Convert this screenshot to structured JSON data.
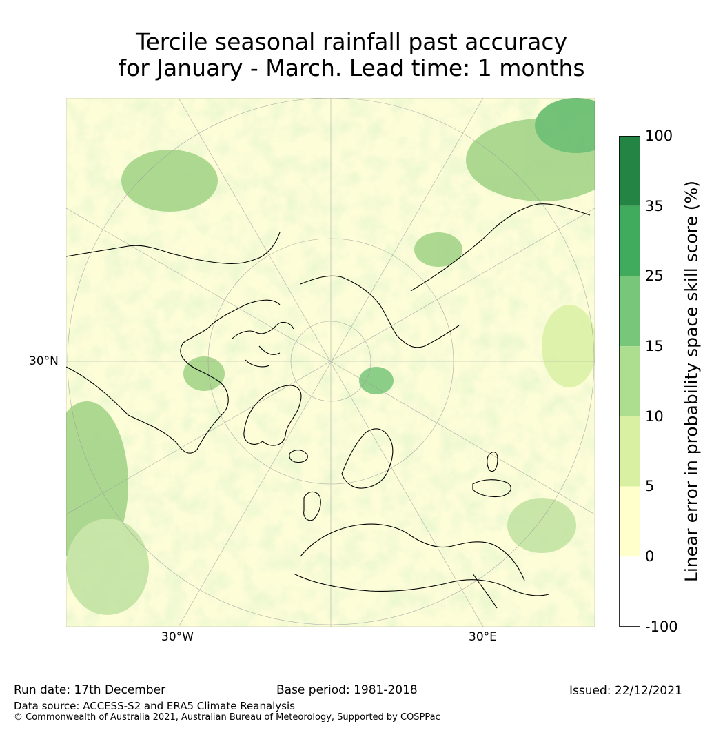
{
  "title": {
    "line1": "Tercile seasonal rainfall past accuracy",
    "line2": "for January - March. Lead time: 1 months"
  },
  "map": {
    "projection": "north polar stereographic",
    "lat_labels": [
      "30°N"
    ],
    "lon_labels": [
      "30°W",
      "30°E"
    ]
  },
  "colorbar": {
    "label": "Linear error in probability space skill score (%)",
    "ticks": [
      "100",
      "35",
      "25",
      "15",
      "10",
      "5",
      "0",
      "-100"
    ],
    "bins": [
      {
        "range": [
          -100,
          0
        ],
        "color": "#ffffff"
      },
      {
        "range": [
          0,
          5
        ],
        "color": "#ffffcc"
      },
      {
        "range": [
          5,
          10
        ],
        "color": "#d9f0a3"
      },
      {
        "range": [
          10,
          15
        ],
        "color": "#addd8e"
      },
      {
        "range": [
          15,
          25
        ],
        "color": "#78c679"
      },
      {
        "range": [
          25,
          35
        ],
        "color": "#41ab5d"
      },
      {
        "range": [
          35,
          100
        ],
        "color": "#238443"
      }
    ]
  },
  "footer": {
    "run_date": "Run date: 17th December",
    "base_period": "Base period: 1981-2018",
    "issued": "Issued: 22/12/2021",
    "source": "Data source: ACCESS-S2 and ERA5 Climate Reanalysis",
    "copyright": "© Commonwealth of Australia 2021, Australian Bureau of Meteorology, Supported by COSPPac"
  }
}
